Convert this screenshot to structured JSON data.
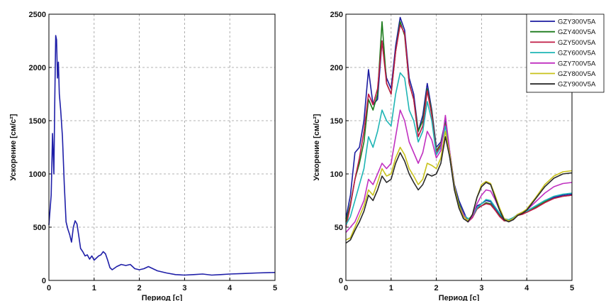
{
  "chart_data": [
    {
      "type": "line",
      "xlabel": "Период [с]",
      "ylabel": "Ускорение [см/с²]",
      "xlim": [
        0,
        5
      ],
      "ylim": [
        0,
        2500
      ],
      "xticks": [
        "0",
        "1",
        "2",
        "3",
        "4",
        "5"
      ],
      "yticks": [
        "0",
        "500",
        "1000",
        "1500",
        "2000",
        "2500"
      ],
      "grid": "dashed",
      "legend": "none",
      "series": [
        {
          "color": "#1f1fa8",
          "x": [
            0,
            0.05,
            0.08,
            0.11,
            0.13,
            0.15,
            0.17,
            0.19,
            0.21,
            0.23,
            0.26,
            0.3,
            0.34,
            0.38,
            0.42,
            0.46,
            0.5,
            0.54,
            0.58,
            0.62,
            0.66,
            0.7,
            0.75,
            0.8,
            0.85,
            0.9,
            0.95,
            1.0,
            1.05,
            1.1,
            1.15,
            1.2,
            1.25,
            1.3,
            1.35,
            1.4,
            1.5,
            1.6,
            1.7,
            1.8,
            1.9,
            2.0,
            2.1,
            2.2,
            2.3,
            2.4,
            2.6,
            2.8,
            3.0,
            3.2,
            3.4,
            3.6,
            3.8,
            4.0,
            4.3,
            4.6,
            5.0
          ],
          "y": [
            520,
            800,
            1380,
            1000,
            1700,
            2300,
            2260,
            1900,
            2050,
            1750,
            1600,
            1350,
            900,
            550,
            480,
            430,
            360,
            500,
            560,
            530,
            420,
            300,
            270,
            230,
            240,
            200,
            230,
            190,
            210,
            230,
            240,
            270,
            250,
            190,
            120,
            100,
            130,
            150,
            140,
            150,
            110,
            100,
            110,
            130,
            110,
            90,
            70,
            55,
            50,
            55,
            60,
            50,
            55,
            60,
            65,
            70,
            75
          ]
        }
      ]
    },
    {
      "type": "line",
      "xlabel": "Период [с]",
      "ylabel": "Ускорение [см/с²]",
      "xlim": [
        0,
        5
      ],
      "ylim": [
        0,
        250
      ],
      "xticks": [
        "0",
        "1",
        "2",
        "3",
        "4",
        "5"
      ],
      "yticks": [
        "0",
        "50",
        "100",
        "150",
        "200",
        "250"
      ],
      "grid": "dashed",
      "legend": "top-right",
      "x": [
        0,
        0.1,
        0.2,
        0.3,
        0.4,
        0.5,
        0.6,
        0.7,
        0.8,
        0.9,
        1.0,
        1.1,
        1.2,
        1.3,
        1.4,
        1.5,
        1.6,
        1.7,
        1.8,
        1.9,
        2.0,
        2.1,
        2.2,
        2.3,
        2.4,
        2.5,
        2.6,
        2.7,
        2.8,
        2.9,
        3.0,
        3.1,
        3.2,
        3.3,
        3.4,
        3.5,
        3.6,
        3.7,
        3.8,
        3.9,
        4.0,
        4.2,
        4.4,
        4.6,
        4.8,
        5.0
      ],
      "series": [
        {
          "name": "GZY300V5A",
          "color": "#1c1ca0",
          "y": [
            58,
            80,
            120,
            125,
            150,
            198,
            165,
            170,
            225,
            190,
            180,
            220,
            247,
            235,
            190,
            175,
            140,
            155,
            185,
            160,
            125,
            130,
            150,
            120,
            90,
            75,
            65,
            55,
            60,
            70,
            72,
            75,
            74,
            68,
            62,
            57,
            56,
            58,
            62,
            63,
            65,
            70,
            75,
            78,
            80,
            81
          ]
        },
        {
          "name": "GZY400V5A",
          "color": "#1a7a1a",
          "y": [
            55,
            72,
            95,
            110,
            130,
            170,
            160,
            175,
            243,
            185,
            175,
            215,
            243,
            230,
            185,
            170,
            140,
            150,
            180,
            158,
            122,
            128,
            148,
            118,
            88,
            72,
            62,
            55,
            60,
            68,
            70,
            73,
            72,
            66,
            61,
            56,
            56,
            58,
            61,
            63,
            64,
            69,
            74,
            77,
            79,
            80
          ]
        },
        {
          "name": "GZY500V5A",
          "color": "#c01a45",
          "y": [
            50,
            70,
            95,
            115,
            140,
            175,
            165,
            180,
            225,
            185,
            175,
            215,
            240,
            232,
            185,
            170,
            135,
            145,
            178,
            155,
            120,
            127,
            146,
            115,
            86,
            70,
            61,
            55,
            59,
            67,
            70,
            72,
            71,
            66,
            60,
            56,
            56,
            57,
            61,
            62,
            64,
            68,
            73,
            77,
            79,
            80
          ]
        },
        {
          "name": "GZY600V5A",
          "color": "#1fb5b5",
          "y": [
            52,
            60,
            75,
            90,
            105,
            135,
            125,
            140,
            160,
            150,
            145,
            175,
            195,
            190,
            160,
            150,
            130,
            140,
            168,
            150,
            118,
            125,
            145,
            115,
            86,
            70,
            62,
            58,
            60,
            68,
            72,
            76,
            75,
            69,
            63,
            58,
            57,
            59,
            62,
            64,
            65,
            70,
            75,
            79,
            81,
            82
          ]
        },
        {
          "name": "GZY700V5A",
          "color": "#c030c0",
          "y": [
            45,
            50,
            55,
            65,
            75,
            95,
            90,
            100,
            110,
            105,
            110,
            135,
            160,
            150,
            130,
            120,
            110,
            120,
            140,
            132,
            115,
            122,
            155,
            120,
            88,
            70,
            62,
            55,
            60,
            72,
            80,
            85,
            84,
            76,
            66,
            58,
            56,
            58,
            62,
            64,
            66,
            74,
            82,
            88,
            91,
            92
          ]
        },
        {
          "name": "GZY800V5A",
          "color": "#c8c21a",
          "y": [
            38,
            40,
            50,
            60,
            70,
            85,
            80,
            92,
            105,
            98,
            100,
            115,
            125,
            118,
            105,
            98,
            90,
            95,
            110,
            108,
            105,
            115,
            140,
            118,
            88,
            70,
            60,
            56,
            62,
            78,
            90,
            93,
            91,
            80,
            68,
            58,
            56,
            58,
            62,
            64,
            67,
            78,
            90,
            98,
            102,
            103
          ]
        },
        {
          "name": "GZY900V5A",
          "color": "#2a2a2a",
          "y": [
            35,
            38,
            47,
            55,
            65,
            80,
            75,
            85,
            98,
            92,
            95,
            110,
            120,
            112,
            100,
            92,
            85,
            90,
            100,
            98,
            100,
            110,
            135,
            115,
            85,
            68,
            58,
            55,
            62,
            78,
            88,
            92,
            90,
            78,
            66,
            57,
            55,
            57,
            61,
            63,
            66,
            77,
            88,
            96,
            100,
            101
          ]
        }
      ]
    }
  ]
}
